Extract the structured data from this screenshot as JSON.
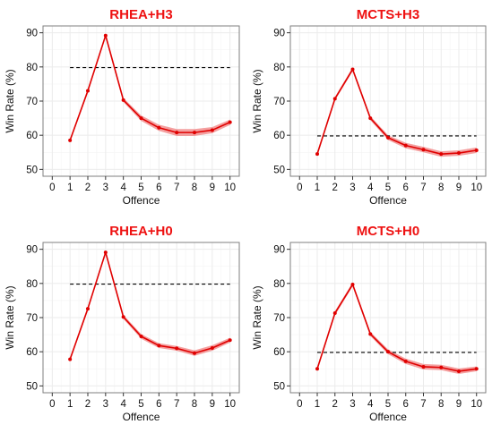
{
  "colors": {
    "series": "#e00000",
    "ribbon": "#f08080",
    "baseline": "#000000",
    "title": "#ee1111",
    "grid": "#ebebeb",
    "panel_border": "#7f7f7f"
  },
  "chart_data": [
    {
      "type": "line",
      "title": "RHEA+H3",
      "xlabel": "Offence",
      "ylabel": "Win Rate (%)",
      "xlim": [
        0,
        10
      ],
      "ylim": [
        48,
        92
      ],
      "xticks": [
        "0",
        "1",
        "2",
        "3",
        "4",
        "5",
        "6",
        "7",
        "8",
        "9",
        "10"
      ],
      "yticks": [
        "50",
        "60",
        "70",
        "80",
        "90"
      ],
      "grid": true,
      "x": [
        1,
        2,
        3,
        4,
        5,
        6,
        7,
        8,
        9,
        10
      ],
      "values": [
        58.5,
        73,
        89.2,
        70.3,
        65,
        62.2,
        60.8,
        60.8,
        61.5,
        63.8
      ],
      "ribbon_halfwidth": [
        0.5,
        0.5,
        0.5,
        0.6,
        0.8,
        0.9,
        1.0,
        1.0,
        0.9,
        0.8
      ],
      "baseline": {
        "value": 79.8,
        "x_from": 1,
        "x_to": 10
      }
    },
    {
      "type": "line",
      "title": "MCTS+H3",
      "xlabel": "Offence",
      "ylabel": "Win Rate (%)",
      "xlim": [
        0,
        10
      ],
      "ylim": [
        48,
        92
      ],
      "xticks": [
        "0",
        "1",
        "2",
        "3",
        "4",
        "5",
        "6",
        "7",
        "8",
        "9",
        "10"
      ],
      "yticks": [
        "50",
        "60",
        "70",
        "80",
        "90"
      ],
      "grid": true,
      "x": [
        1,
        2,
        3,
        4,
        5,
        6,
        7,
        8,
        9,
        10
      ],
      "values": [
        54.5,
        70.7,
        79.3,
        65,
        59.3,
        57,
        55.8,
        54.5,
        54.8,
        55.6
      ],
      "ribbon_halfwidth": [
        0.5,
        0.5,
        0.6,
        0.6,
        0.7,
        0.8,
        0.8,
        0.8,
        0.8,
        0.8
      ],
      "baseline": {
        "value": 59.8,
        "x_from": 1,
        "x_to": 10
      }
    },
    {
      "type": "line",
      "title": "RHEA+H0",
      "xlabel": "Offence",
      "ylabel": "Win Rate (%)",
      "xlim": [
        0,
        10
      ],
      "ylim": [
        48,
        92
      ],
      "xticks": [
        "0",
        "1",
        "2",
        "3",
        "4",
        "5",
        "6",
        "7",
        "8",
        "9",
        "10"
      ],
      "yticks": [
        "50",
        "60",
        "70",
        "80",
        "90"
      ],
      "grid": true,
      "x": [
        1,
        2,
        3,
        4,
        5,
        6,
        7,
        8,
        9,
        10
      ],
      "values": [
        57.8,
        72.6,
        89.1,
        70.2,
        64.5,
        61.8,
        61,
        59.6,
        61.1,
        63.4
      ],
      "ribbon_halfwidth": [
        0.5,
        0.5,
        0.5,
        0.6,
        0.7,
        0.7,
        0.7,
        0.8,
        0.8,
        0.7
      ],
      "baseline": {
        "value": 79.8,
        "x_from": 1,
        "x_to": 10
      }
    },
    {
      "type": "line",
      "title": "MCTS+H0",
      "xlabel": "Offence",
      "ylabel": "Win Rate (%)",
      "xlim": [
        0,
        10
      ],
      "ylim": [
        48,
        92
      ],
      "xticks": [
        "0",
        "1",
        "2",
        "3",
        "4",
        "5",
        "6",
        "7",
        "8",
        "9",
        "10"
      ],
      "yticks": [
        "50",
        "60",
        "70",
        "80",
        "90"
      ],
      "grid": true,
      "x": [
        1,
        2,
        3,
        4,
        5,
        6,
        7,
        8,
        9,
        10
      ],
      "values": [
        55,
        71.3,
        79.7,
        65.2,
        60,
        57.2,
        55.6,
        55.4,
        54.3,
        55
      ],
      "ribbon_halfwidth": [
        0.5,
        0.6,
        0.6,
        0.6,
        0.7,
        0.8,
        0.8,
        0.8,
        0.8,
        0.7
      ],
      "baseline": {
        "value": 59.8,
        "x_from": 1,
        "x_to": 10
      }
    }
  ]
}
